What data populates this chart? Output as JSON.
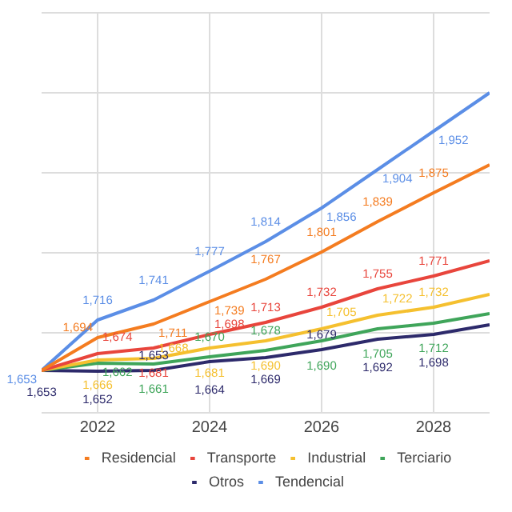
{
  "chart_data": {
    "type": "line",
    "x": [
      2021,
      2022,
      2023,
      2024,
      2025,
      2026,
      2027,
      2028,
      2029
    ],
    "xlim": [
      2021,
      2029
    ],
    "xticks": [
      2022,
      2024,
      2026,
      2028
    ],
    "ylim": [
      1600,
      2100
    ],
    "yticks": [
      1600,
      1700,
      1800,
      1900,
      2000,
      2100
    ],
    "tick_labels": "x",
    "grid": true,
    "legend": "bottom",
    "marker": "none",
    "line_style": "solid",
    "series": [
      {
        "name": "Residencial",
        "color": "#f47c20",
        "values": [
          1653,
          1694,
          1711,
          1739,
          1767,
          1801,
          1839,
          1875,
          1910
        ],
        "value_labels": [
          null,
          "1,694",
          "1,711",
          "1,739",
          "1,767",
          "1,801",
          "1,839",
          "1,875",
          null
        ]
      },
      {
        "name": "Transporte",
        "color": "#e8453c",
        "values": [
          1653,
          1674,
          1681,
          1698,
          1713,
          1732,
          1755,
          1771,
          1790
        ],
        "value_labels": [
          null,
          "1,674",
          "1,681",
          "1,698",
          "1,713",
          "1,732",
          "1,755",
          "1,771",
          null
        ]
      },
      {
        "name": "Industrial",
        "color": "#f5c02f",
        "values": [
          1653,
          1666,
          1668,
          1681,
          1690,
          1705,
          1722,
          1732,
          1748
        ],
        "value_labels": [
          null,
          "1,666",
          "1,668",
          "1,681",
          "1,690",
          "1,705",
          "1,722",
          "1,732",
          null
        ]
      },
      {
        "name": "Terciario",
        "color": "#3fa55a",
        "values": [
          1653,
          1662,
          1661,
          1670,
          1678,
          1690,
          1705,
          1712,
          1724
        ],
        "value_labels": [
          null,
          "1,662",
          "1,661",
          "1,670",
          "1,678",
          "1,690",
          "1,705",
          "1,712",
          null
        ]
      },
      {
        "name": "Otros",
        "color": "#2d2a6b",
        "values": [
          1653,
          1652,
          1653,
          1664,
          1669,
          1679,
          1692,
          1698,
          1710
        ],
        "value_labels": [
          "1,653",
          "1,652",
          "1,653",
          "1,664",
          "1,669",
          "1,679",
          "1,692",
          "1,698",
          null
        ]
      },
      {
        "name": "Tendencial",
        "color": "#5b8ee6",
        "values": [
          1653,
          1716,
          1741,
          1777,
          1814,
          1856,
          1904,
          1952,
          2000
        ],
        "value_labels": [
          "1,653",
          "1,716",
          "1,741",
          "1,777",
          "1,814",
          "1,856",
          "1,904",
          "1,952",
          null
        ]
      }
    ]
  }
}
